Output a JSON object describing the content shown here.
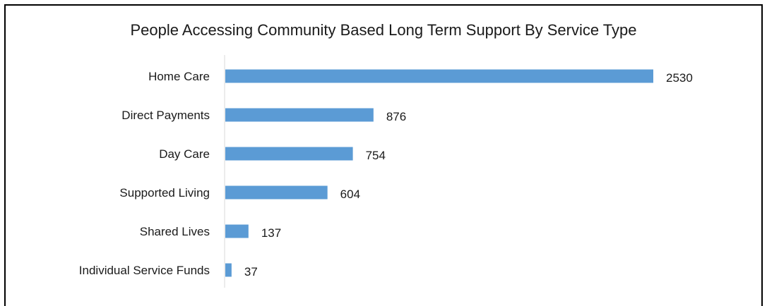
{
  "chart_data": {
    "type": "bar",
    "orientation": "horizontal",
    "title": "People Accessing Community Based Long Term Support By Service Type",
    "xlabel": "",
    "ylabel": "",
    "categories": [
      "Home Care",
      "Direct Payments",
      "Day Care",
      "Supported Living",
      "Shared Lives",
      "Individual Service Funds"
    ],
    "values": [
      2530,
      876,
      754,
      604,
      137,
      37
    ],
    "xlim": [
      0,
      2530
    ],
    "data_labels": true,
    "grid": false,
    "legend": "none",
    "bar_color": "#5b9bd5",
    "axis_color": "#d9d9d9"
  }
}
